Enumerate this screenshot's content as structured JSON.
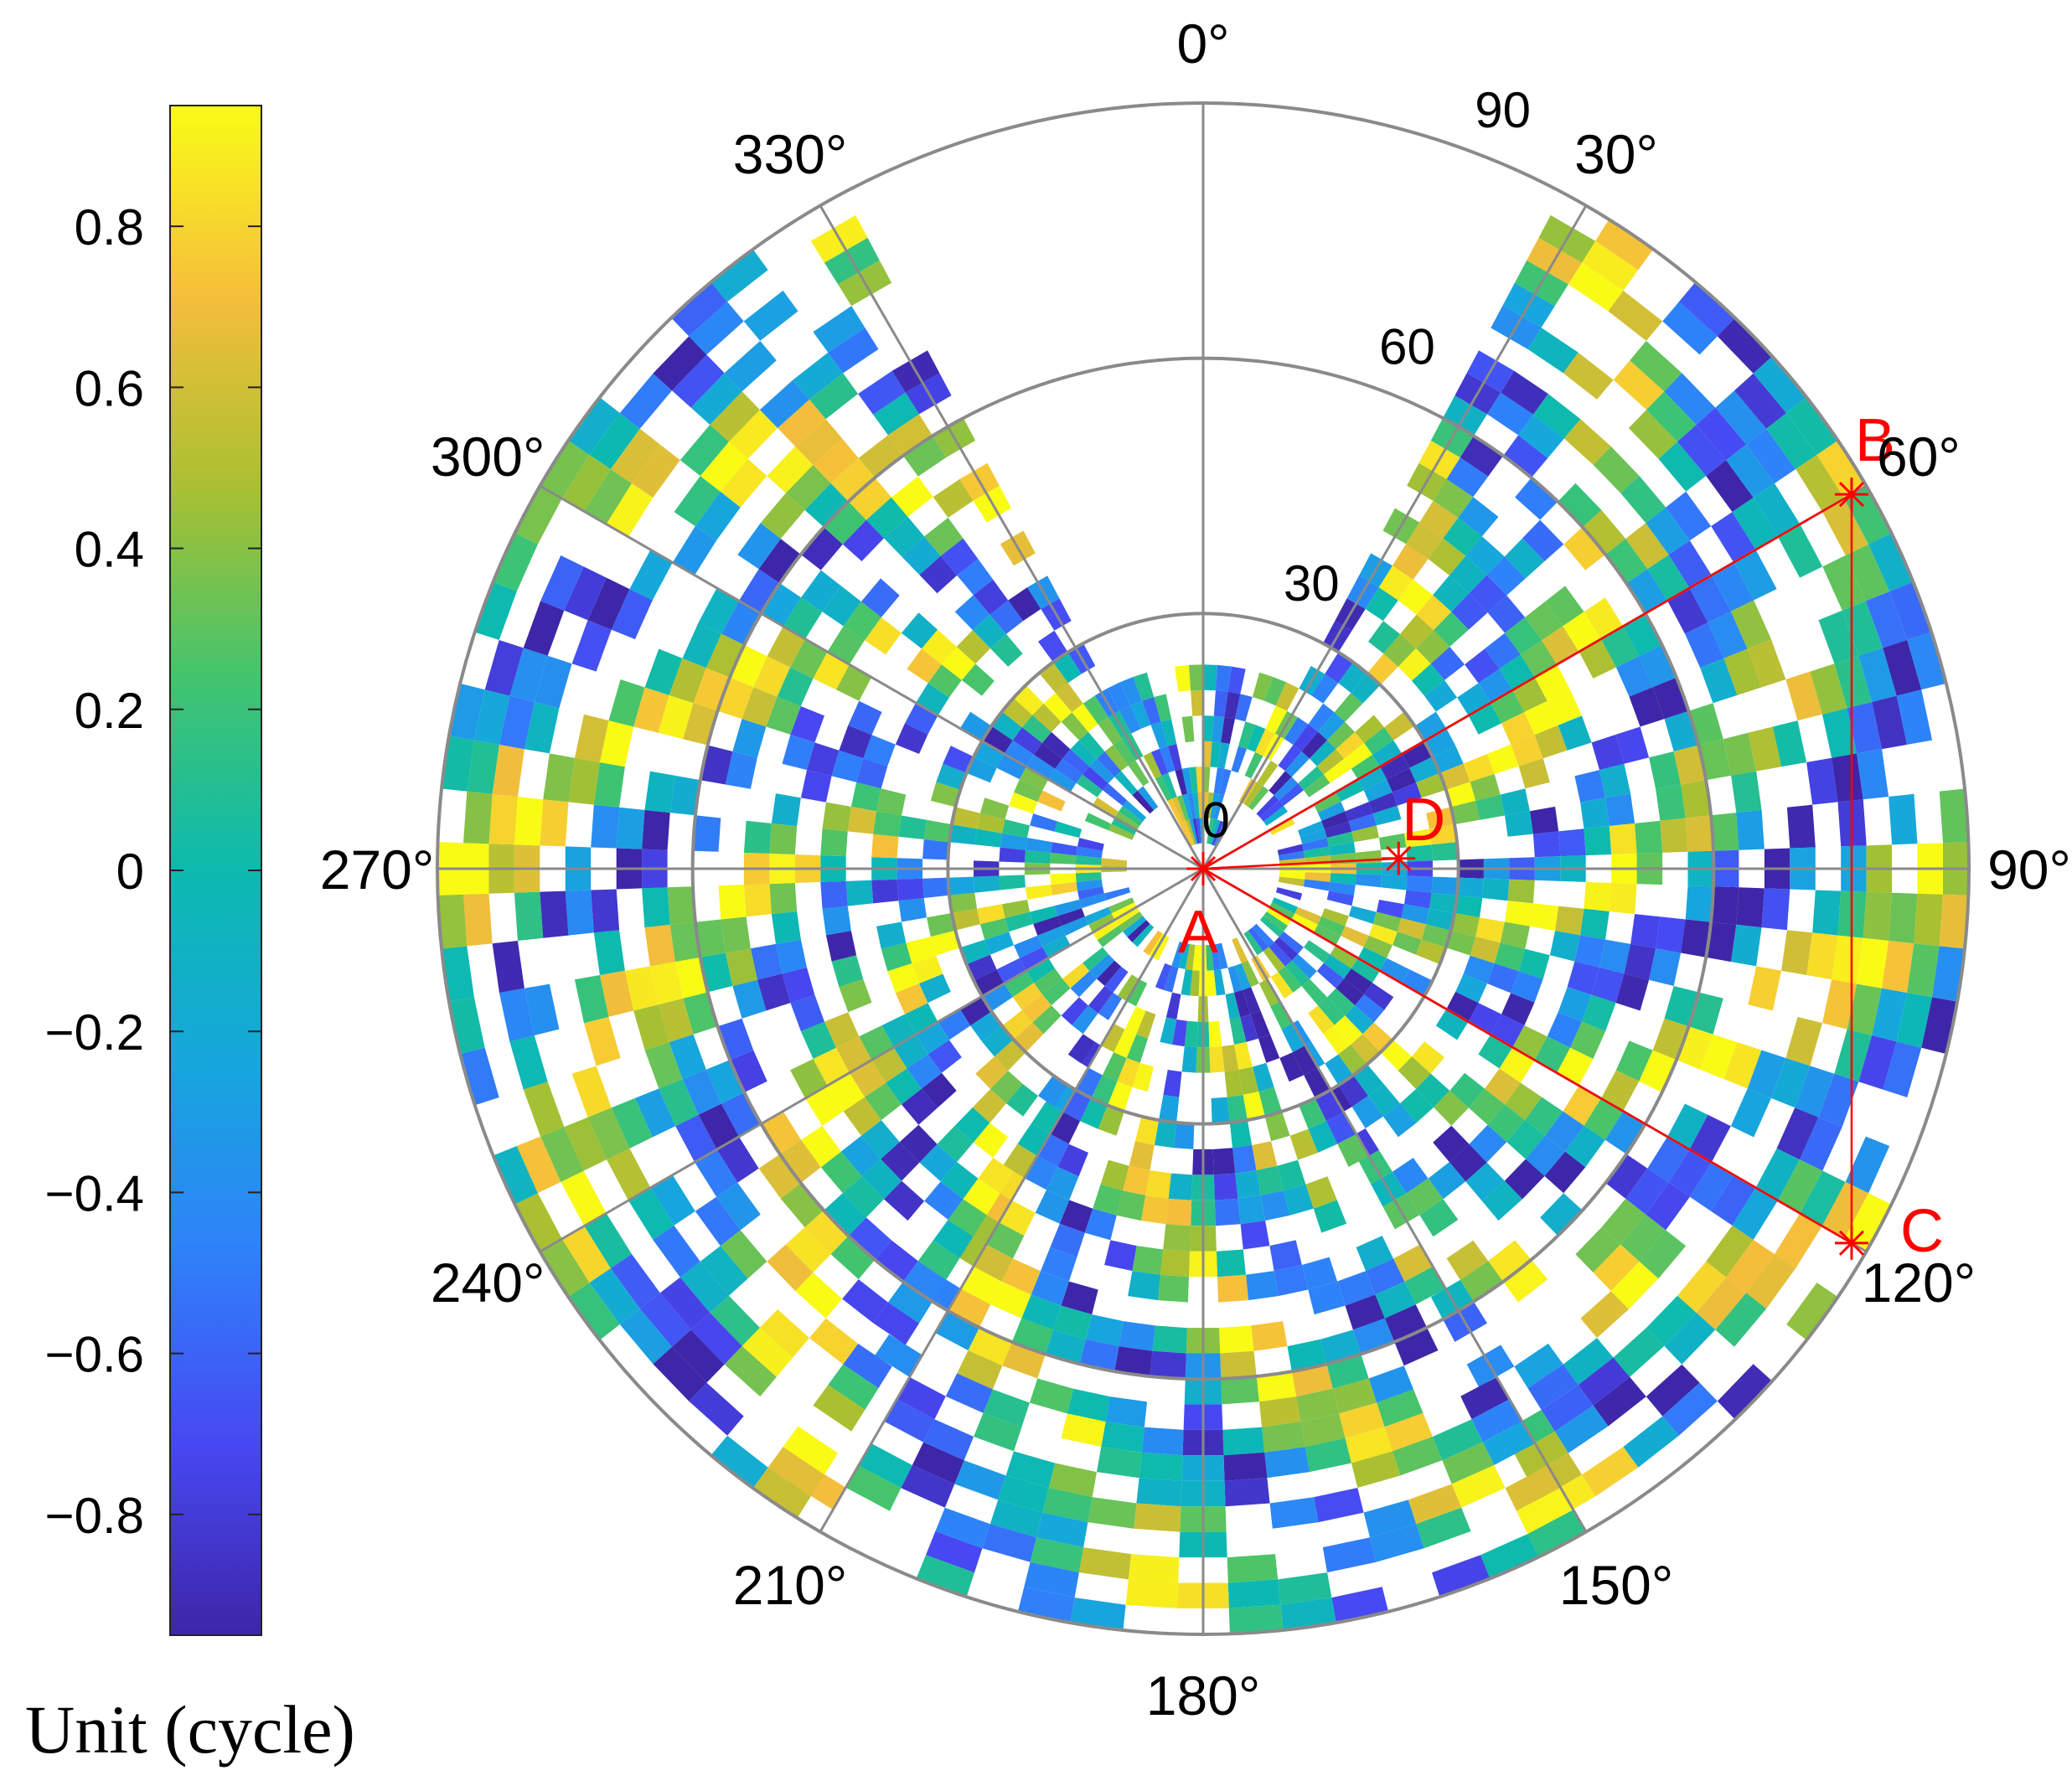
{
  "chart_data": {
    "type": "heatmap",
    "subtype": "polar-skyplot",
    "title": "",
    "theta_ticks": [
      "0°",
      "30°",
      "60°",
      "90°",
      "120°",
      "150°",
      "180°",
      "210°",
      "240°",
      "270°",
      "300°",
      "330°"
    ],
    "r_ticks": [
      {
        "value": 0,
        "label": "0"
      },
      {
        "value": 30,
        "label": "30"
      },
      {
        "value": 60,
        "label": "60"
      },
      {
        "value": 90,
        "label": "90"
      }
    ],
    "r_range": [
      0,
      90
    ],
    "theta_direction": "clockwise",
    "theta_zero": "top",
    "grid": true,
    "colorbar": {
      "range": [
        -0.95,
        0.95
      ],
      "ticks": [
        {
          "value": 0.8,
          "label": "0.8"
        },
        {
          "value": 0.6,
          "label": "0.6"
        },
        {
          "value": 0.4,
          "label": "0.4"
        },
        {
          "value": 0.2,
          "label": "0.2"
        },
        {
          "value": 0,
          "label": "0"
        },
        {
          "value": -0.2,
          "label": "−0.2"
        },
        {
          "value": -0.4,
          "label": "−0.4"
        },
        {
          "value": -0.6,
          "label": "−0.6"
        },
        {
          "value": -0.8,
          "label": "−0.8"
        }
      ],
      "label": "Unit (cycle)",
      "colormap": "parula",
      "placement": "left"
    },
    "cell_resolution": {
      "d_theta_deg": 4,
      "d_r": 3
    },
    "sectors": [
      {
        "theta_start": 28,
        "theta_end": 150,
        "r_min": 9,
        "r_max": 90
      },
      {
        "theta_start": 150,
        "theta_end": 212,
        "r_min": 9,
        "r_max": 90
      },
      {
        "theta_start": 212,
        "theta_end": 332,
        "r_min": 9,
        "r_max": 90
      },
      {
        "theta_start": 332,
        "theta_end": 388,
        "r_min": 3,
        "r_max": 24
      }
    ],
    "points": [
      {
        "name": "A",
        "azimuth": 0,
        "radius": 0
      },
      {
        "name": "B",
        "azimuth": 60,
        "radius": 88
      },
      {
        "name": "C",
        "azimuth": 120,
        "radius": 88
      },
      {
        "name": "D",
        "azimuth": 87,
        "radius": 23
      }
    ],
    "segments": [
      [
        "A",
        "B"
      ],
      [
        "A",
        "C"
      ],
      [
        "A",
        "D"
      ],
      [
        "B",
        "C"
      ]
    ],
    "marker_color": "#ff0000"
  }
}
